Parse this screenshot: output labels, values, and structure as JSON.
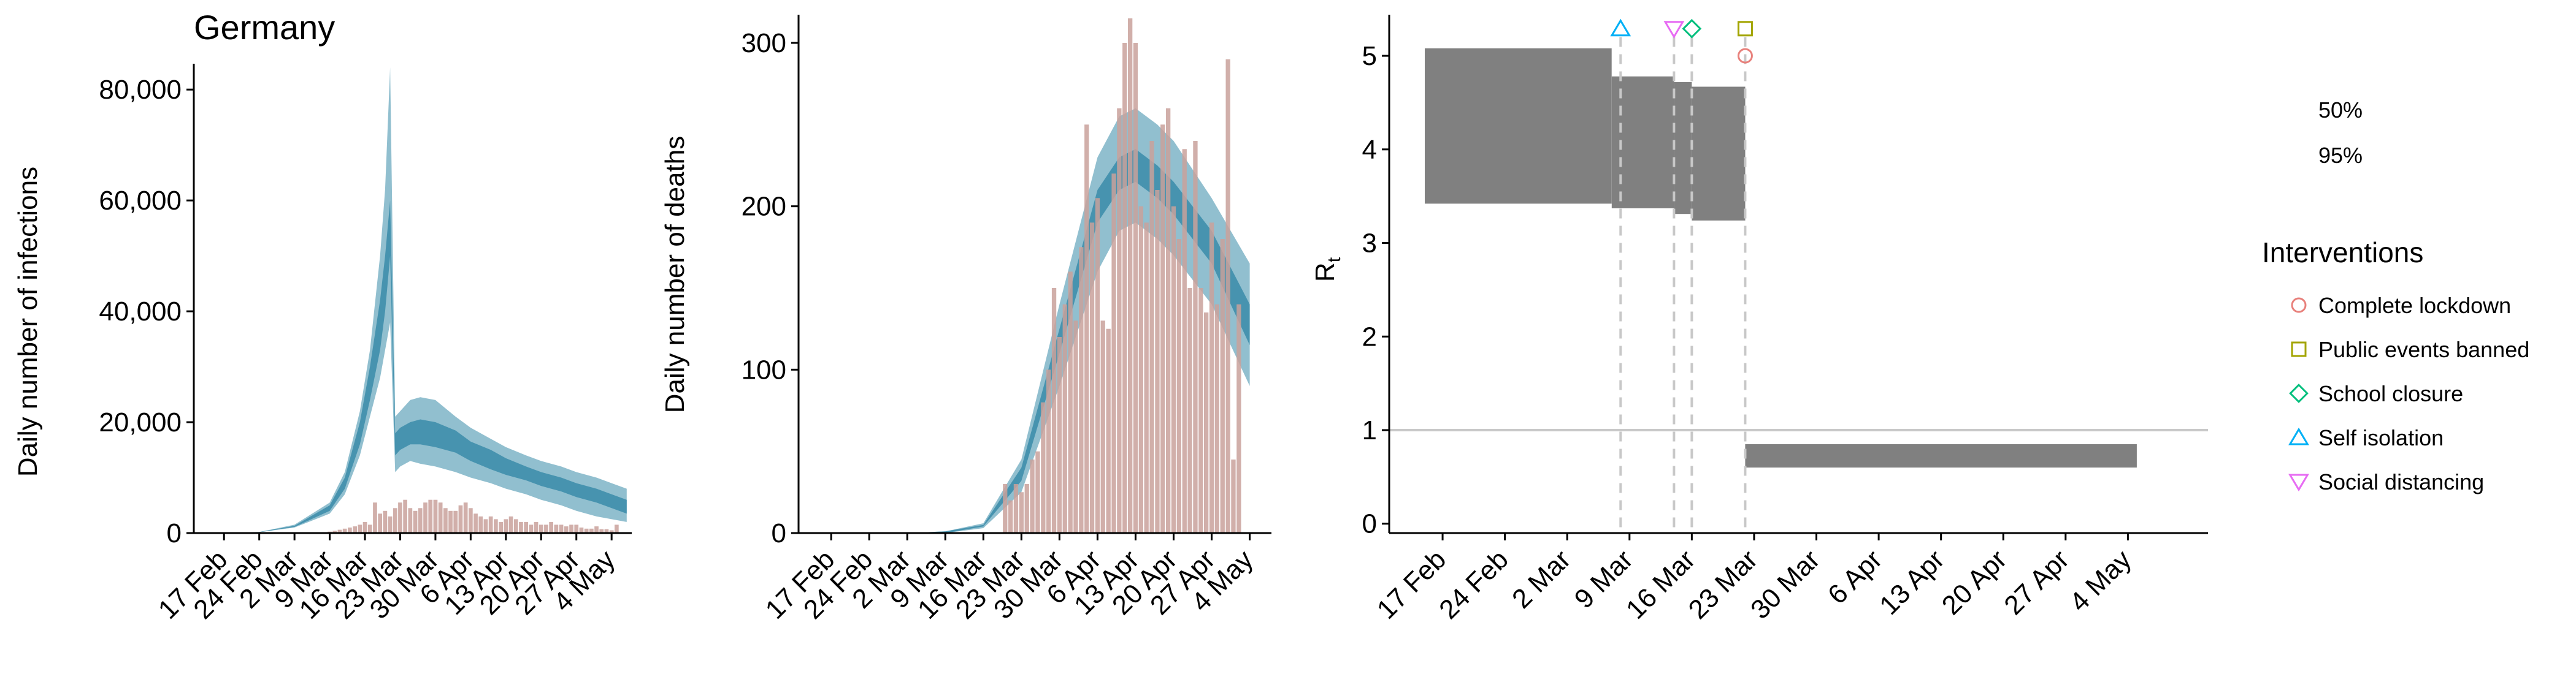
{
  "figure": {
    "title": "Germany"
  },
  "chart_data": [
    {
      "type": "bar",
      "overlay": "area",
      "ylabel": "Daily number of infections",
      "ylim": [
        0,
        84000
      ],
      "yticks": [
        0,
        20000,
        40000,
        60000,
        80000
      ],
      "ytick_labels": [
        "0",
        "20,000",
        "40,000",
        "60,000",
        "80,000"
      ],
      "xrange": [
        "2020-02-11",
        "2020-05-08"
      ],
      "xticks": [
        "2020-02-17",
        "2020-02-24",
        "2020-03-02",
        "2020-03-09",
        "2020-03-16",
        "2020-03-23",
        "2020-03-30",
        "2020-04-06",
        "2020-04-13",
        "2020-04-20",
        "2020-04-27",
        "2020-05-04"
      ],
      "xtick_labels": [
        "17 Feb",
        "24 Feb",
        "2 Mar",
        "9 Mar",
        "16 Mar",
        "23 Mar",
        "30 Mar",
        "6 Apr",
        "13 Apr",
        "20 Apr",
        "27 Apr",
        "4 May"
      ],
      "bars_start": "2020-03-08",
      "bar_values": [
        150,
        250,
        400,
        600,
        800,
        1000,
        1200,
        1500,
        2000,
        1500,
        5500,
        3500,
        4000,
        3000,
        4500,
        5500,
        6000,
        4500,
        4000,
        4500,
        5500,
        6000,
        6000,
        5500,
        4500,
        4000,
        4000,
        5000,
        5500,
        4500,
        3500,
        3000,
        2500,
        3000,
        2500,
        2000,
        2500,
        3000,
        2500,
        2000,
        2000,
        1500,
        2000,
        1500,
        1500,
        2000,
        1500,
        1500,
        1200,
        1500,
        1500,
        1000,
        800,
        800,
        1200,
        700,
        700,
        500,
        1500
      ],
      "bands": {
        "dates": [
          "2020-02-17",
          "2020-02-24",
          "2020-03-02",
          "2020-03-09",
          "2020-03-12",
          "2020-03-15",
          "2020-03-17",
          "2020-03-19",
          "2020-03-20",
          "2020-03-21",
          "2020-03-22",
          "2020-03-23",
          "2020-03-25",
          "2020-03-27",
          "2020-03-30",
          "2020-04-03",
          "2020-04-06",
          "2020-04-10",
          "2020-04-13",
          "2020-04-17",
          "2020-04-20",
          "2020-04-24",
          "2020-04-27",
          "2020-05-01",
          "2020-05-04",
          "2020-05-07"
        ],
        "lo95": [
          50,
          150,
          1000,
          3500,
          7000,
          14000,
          21000,
          28000,
          33000,
          38000,
          11000,
          12000,
          13000,
          12500,
          12000,
          11000,
          10000,
          9000,
          8000,
          7000,
          6000,
          5000,
          4000,
          3000,
          2500,
          2000
        ],
        "hi95": [
          100,
          200,
          1500,
          5500,
          11000,
          22000,
          33000,
          50000,
          62000,
          84000,
          21000,
          22000,
          24000,
          24500,
          24000,
          21000,
          19000,
          17000,
          15500,
          14000,
          13000,
          12000,
          11000,
          10000,
          9000,
          8000
        ],
        "lo50": [
          60,
          160,
          1100,
          4000,
          8000,
          16000,
          24000,
          33000,
          40000,
          50000,
          14000,
          15000,
          16000,
          16000,
          15500,
          14500,
          13000,
          11500,
          10500,
          9500,
          8500,
          7500,
          6500,
          5500,
          4500,
          3500
        ],
        "hi50": [
          80,
          180,
          1300,
          5000,
          10000,
          20000,
          30000,
          42000,
          50000,
          60000,
          18000,
          19000,
          20000,
          20500,
          20000,
          18500,
          16500,
          15000,
          13500,
          12000,
          11000,
          10000,
          9000,
          8000,
          7000,
          6000
        ]
      }
    },
    {
      "type": "bar",
      "overlay": "area",
      "ylabel": "Daily number of deaths",
      "ylim": [
        0,
        315
      ],
      "yticks": [
        0,
        100,
        200,
        300
      ],
      "ytick_labels": [
        "0",
        "100",
        "200",
        "300"
      ],
      "xrange": [
        "2020-02-11",
        "2020-05-08"
      ],
      "xticks": [
        "2020-02-17",
        "2020-02-24",
        "2020-03-02",
        "2020-03-09",
        "2020-03-16",
        "2020-03-23",
        "2020-03-30",
        "2020-04-06",
        "2020-04-13",
        "2020-04-20",
        "2020-04-27",
        "2020-05-04"
      ],
      "xtick_labels": [
        "17 Feb",
        "24 Feb",
        "2 Mar",
        "9 Mar",
        "16 Mar",
        "23 Mar",
        "30 Mar",
        "6 Apr",
        "13 Apr",
        "20 Apr",
        "27 Apr",
        "4 May"
      ],
      "bars_start": "2020-03-20",
      "bar_values": [
        30,
        20,
        30,
        25,
        30,
        45,
        50,
        80,
        100,
        150,
        120,
        140,
        160,
        130,
        175,
        250,
        190,
        205,
        130,
        125,
        220,
        260,
        300,
        315,
        300,
        200,
        190,
        240,
        210,
        250,
        260,
        200,
        180,
        235,
        150,
        240,
        150,
        135,
        190,
        140,
        180,
        290,
        45,
        140
      ],
      "bands": {
        "dates": [
          "2020-02-17",
          "2020-03-02",
          "2020-03-09",
          "2020-03-16",
          "2020-03-23",
          "2020-03-30",
          "2020-04-06",
          "2020-04-10",
          "2020-04-13",
          "2020-04-17",
          "2020-04-20",
          "2020-04-27",
          "2020-05-04"
        ],
        "lo95": [
          0,
          0,
          0,
          3,
          25,
          90,
          160,
          185,
          190,
          180,
          170,
          140,
          90
        ],
        "hi95": [
          0,
          0,
          1,
          6,
          45,
          140,
          230,
          255,
          260,
          250,
          240,
          205,
          165
        ],
        "lo50": [
          0,
          0,
          0,
          4,
          32,
          110,
          190,
          210,
          215,
          205,
          195,
          165,
          115
        ],
        "hi50": [
          0,
          0,
          1,
          5,
          40,
          125,
          210,
          230,
          235,
          225,
          215,
          185,
          140
        ]
      }
    },
    {
      "type": "area",
      "ylabel": "R",
      "ylabel_sub": "t",
      "ylim": [
        -0.1,
        5.4
      ],
      "yticks": [
        0,
        1,
        2,
        3,
        4,
        5
      ],
      "ytick_labels": [
        "0",
        "1",
        "2",
        "3",
        "4",
        "5"
      ],
      "xrange": [
        "2020-02-11",
        "2020-05-13"
      ],
      "xticks": [
        "2020-02-17",
        "2020-02-24",
        "2020-03-02",
        "2020-03-09",
        "2020-03-16",
        "2020-03-23",
        "2020-03-30",
        "2020-04-06",
        "2020-04-13",
        "2020-04-20",
        "2020-04-27",
        "2020-05-04"
      ],
      "xtick_labels": [
        "17 Feb",
        "24 Feb",
        "2 Mar",
        "9 Mar",
        "16 Mar",
        "23 Mar",
        "30 Mar",
        "6 Apr",
        "13 Apr",
        "20 Apr",
        "27 Apr",
        "4 May"
      ],
      "reference_line": 1,
      "segments": [
        {
          "start": "2020-02-15",
          "end": "2020-03-07",
          "lo": 3.42,
          "hi": 5.08
        },
        {
          "start": "2020-03-07",
          "end": "2020-03-14",
          "lo": 3.37,
          "hi": 4.78
        },
        {
          "start": "2020-03-14",
          "end": "2020-03-16",
          "lo": 3.31,
          "hi": 4.72
        },
        {
          "start": "2020-03-16",
          "end": "2020-03-22",
          "lo": 3.24,
          "hi": 4.67
        },
        {
          "start": "2020-03-22",
          "end": "2020-05-05",
          "lo": 0.6,
          "hi": 0.85
        }
      ],
      "intervention_lines": [
        "2020-03-08",
        "2020-03-14",
        "2020-03-16",
        "2020-03-22"
      ],
      "markers": [
        {
          "intervention": "Self isolation",
          "date": "2020-03-08",
          "y": 5.29
        },
        {
          "intervention": "Social distancing",
          "date": "2020-03-14",
          "y": 5.29
        },
        {
          "intervention": "School closure",
          "date": "2020-03-16",
          "y": 5.29
        },
        {
          "intervention": "Public events banned",
          "date": "2020-03-22",
          "y": 5.29
        },
        {
          "intervention": "Complete lockdown",
          "date": "2020-03-22",
          "y": 5.0
        }
      ],
      "legend": {
        "band_labels": [
          "50%",
          "95%"
        ],
        "title": "Interventions",
        "items": [
          {
            "label": "Complete lockdown",
            "shape": "circle",
            "color": "#e8807b"
          },
          {
            "label": "Public events banned",
            "shape": "square",
            "color": "#a3a500"
          },
          {
            "label": "School closure",
            "shape": "diamond",
            "color": "#00bf7d"
          },
          {
            "label": "Self isolation",
            "shape": "triangle-up",
            "color": "#00b0f6"
          },
          {
            "label": "Social distancing",
            "shape": "triangle-down",
            "color": "#e76bf3"
          }
        ],
        "placement": "right"
      }
    }
  ],
  "colors": {
    "bar": "#c9a19b",
    "band95": "#8bbccc",
    "band50": "#3f8eab",
    "rt": "#808080",
    "refline": "#c8c8c8",
    "dashline": "#c8c8c8",
    "axis": "#000000"
  }
}
